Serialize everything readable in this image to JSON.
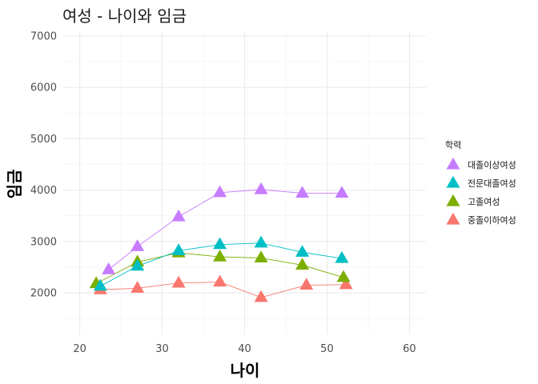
{
  "chart_data": {
    "type": "line",
    "title": "여성 - 나이와 임금",
    "xlabel": "나이",
    "ylabel": "임금",
    "xlim": [
      18,
      62
    ],
    "ylim": [
      1300,
      7000
    ],
    "x_ticks": [
      20,
      30,
      40,
      50,
      60
    ],
    "y_ticks": [
      2000,
      3000,
      4000,
      5000,
      6000,
      7000
    ],
    "x_tick_labels": [
      "20",
      "30",
      "40",
      "50",
      "60"
    ],
    "y_tick_labels": [
      "2000",
      "3000",
      "4000",
      "5000",
      "6000",
      "7000"
    ],
    "grid": true,
    "marker": "triangle",
    "legend": {
      "title": "학력",
      "position": "right"
    },
    "series": [
      {
        "name": "대졸이상여성",
        "color": "#C77CFF",
        "points": [
          {
            "x": 23.5,
            "y": 2450
          },
          {
            "x": 27.0,
            "y": 2900
          },
          {
            "x": 32.0,
            "y": 3480
          },
          {
            "x": 37.0,
            "y": 3950
          },
          {
            "x": 42.0,
            "y": 4010
          },
          {
            "x": 47.0,
            "y": 3940
          },
          {
            "x": 51.8,
            "y": 3940
          }
        ]
      },
      {
        "name": "전문대졸여성",
        "color": "#00BFC4",
        "points": [
          {
            "x": 22.5,
            "y": 2130
          },
          {
            "x": 27.0,
            "y": 2520
          },
          {
            "x": 32.0,
            "y": 2820
          },
          {
            "x": 37.0,
            "y": 2940
          },
          {
            "x": 42.0,
            "y": 2970
          },
          {
            "x": 47.0,
            "y": 2790
          },
          {
            "x": 51.8,
            "y": 2670
          }
        ]
      },
      {
        "name": "고졸여성",
        "color": "#7CAE00",
        "points": [
          {
            "x": 22.0,
            "y": 2180
          },
          {
            "x": 27.0,
            "y": 2600
          },
          {
            "x": 32.0,
            "y": 2780
          },
          {
            "x": 37.0,
            "y": 2700
          },
          {
            "x": 42.0,
            "y": 2680
          },
          {
            "x": 47.0,
            "y": 2540
          },
          {
            "x": 52.0,
            "y": 2300
          }
        ]
      },
      {
        "name": "중졸이하여성",
        "color": "#F8766D",
        "points": [
          {
            "x": 22.5,
            "y": 2060
          },
          {
            "x": 27.0,
            "y": 2090
          },
          {
            "x": 32.0,
            "y": 2190
          },
          {
            "x": 37.0,
            "y": 2210
          },
          {
            "x": 42.0,
            "y": 1910
          },
          {
            "x": 47.5,
            "y": 2150
          },
          {
            "x": 52.3,
            "y": 2160
          }
        ]
      }
    ]
  }
}
